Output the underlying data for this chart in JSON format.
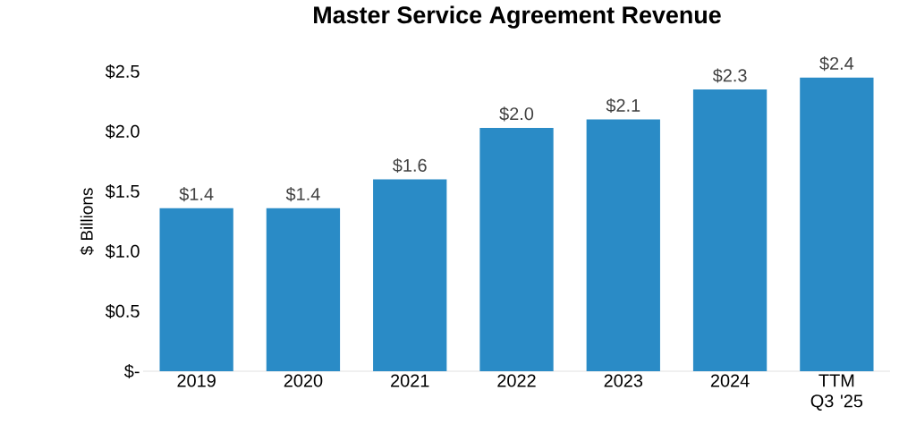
{
  "chart_data": {
    "type": "bar",
    "title": "Master Service Agreement Revenue",
    "ylabel": "$ Billions",
    "categories": [
      "2019",
      "2020",
      "2021",
      "2022",
      "2023",
      "2024",
      "TTM Q3 '25"
    ],
    "values": [
      1.36,
      1.36,
      1.6,
      2.03,
      2.1,
      2.35,
      2.45
    ],
    "value_labels": [
      "$1.4",
      "$1.4",
      "$1.6",
      "$2.0",
      "$2.1",
      "$2.3",
      "$2.4"
    ],
    "color": "#2a8bc6",
    "ylim": [
      0,
      2.5
    ],
    "yticks": [
      {
        "value": 0,
        "label": "$-"
      },
      {
        "value": 0.5,
        "label": "$0.5"
      },
      {
        "value": 1.0,
        "label": "$1.0"
      },
      {
        "value": 1.5,
        "label": "$1.5"
      },
      {
        "value": 2.0,
        "label": "$2.0"
      },
      {
        "value": 2.5,
        "label": "$2.5"
      }
    ],
    "grid": false
  }
}
